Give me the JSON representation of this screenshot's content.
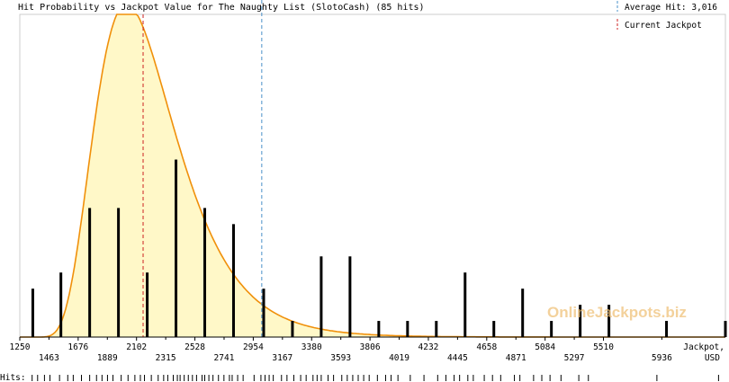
{
  "chart_data": {
    "type": "bar",
    "title": "Hit Probability vs Jackpot Value for The Naughty List (SlotoCash) (85 hits)",
    "xlabel": "Jackpot,",
    "xunit": "USD",
    "hits_label": "Hits:",
    "watermark": "OnlineJackpots.biz",
    "xlim": [
      1250,
      6400
    ],
    "ylim": [
      0,
      10
    ],
    "x_ticks_top": [
      1250,
      1676,
      2102,
      2528,
      2954,
      3380,
      3806,
      4232,
      4658,
      5084,
      5510
    ],
    "x_ticks_bottom": [
      1463,
      1889,
      2315,
      2741,
      3167,
      3593,
      4019,
      4445,
      4871,
      5297,
      5936
    ],
    "legend": [
      {
        "label": "Average Hit: 3,016",
        "color": "#4a90c8",
        "value": 3016
      },
      {
        "label": "Current Jackpot",
        "color": "#cc2222",
        "value": 2150
      }
    ],
    "curve": {
      "color": "#f0900a",
      "fill": "#fff8c8",
      "peak_x": 2150,
      "peak_y": 9.6
    },
    "bars": [
      {
        "x": 1345,
        "y": 1.5
      },
      {
        "x": 1550,
        "y": 2
      },
      {
        "x": 1760,
        "y": 4
      },
      {
        "x": 1970,
        "y": 4
      },
      {
        "x": 2180,
        "y": 2
      },
      {
        "x": 2390,
        "y": 5.5
      },
      {
        "x": 2600,
        "y": 4
      },
      {
        "x": 2810,
        "y": 3.5
      },
      {
        "x": 3030,
        "y": 1.5
      },
      {
        "x": 3240,
        "y": 0.5
      },
      {
        "x": 3450,
        "y": 2.5
      },
      {
        "x": 3660,
        "y": 2.5
      },
      {
        "x": 3870,
        "y": 0.5
      },
      {
        "x": 4080,
        "y": 0.5
      },
      {
        "x": 4290,
        "y": 0.5
      },
      {
        "x": 4500,
        "y": 2
      },
      {
        "x": 4710,
        "y": 0.5
      },
      {
        "x": 4920,
        "y": 1.5
      },
      {
        "x": 5130,
        "y": 0.5
      },
      {
        "x": 5340,
        "y": 1
      },
      {
        "x": 5550,
        "y": 1
      },
      {
        "x": 5970,
        "y": 0.5
      },
      {
        "x": 6400,
        "y": 0.5
      }
    ],
    "hit_ticks": [
      1340,
      1380,
      1430,
      1470,
      1540,
      1600,
      1640,
      1700,
      1760,
      1810,
      1850,
      1890,
      1930,
      1990,
      2040,
      2090,
      2130,
      2160,
      2210,
      2260,
      2300,
      2330,
      2370,
      2400,
      2420,
      2450,
      2480,
      2510,
      2540,
      2580,
      2600,
      2630,
      2660,
      2700,
      2740,
      2780,
      2800,
      2840,
      2880,
      2960,
      3010,
      3040,
      3070,
      3100,
      3160,
      3200,
      3250,
      3300,
      3340,
      3390,
      3420,
      3450,
      3500,
      3540,
      3600,
      3640,
      3680,
      3720,
      3760,
      3800,
      3860,
      3920,
      3960,
      4010,
      4100,
      4200,
      4300,
      4360,
      4420,
      4460,
      4520,
      4560,
      4640,
      4700,
      4760,
      4860,
      4900,
      5000,
      5060,
      5120,
      5200,
      5330,
      5400,
      5900,
      6350
    ]
  }
}
